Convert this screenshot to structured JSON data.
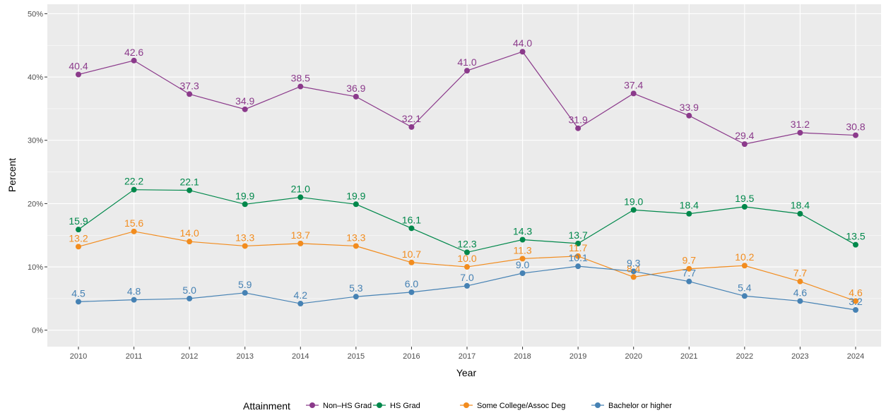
{
  "chart_data": {
    "type": "line",
    "title": "",
    "xlabel": "Year",
    "ylabel": "Percent",
    "x": [
      2010,
      2011,
      2012,
      2013,
      2014,
      2015,
      2016,
      2017,
      2018,
      2019,
      2020,
      2021,
      2022,
      2023,
      2024
    ],
    "ylim": [
      0,
      50
    ],
    "y_ticks": [
      "0%",
      "10%",
      "20%",
      "30%",
      "40%",
      "50%"
    ],
    "y_tick_values": [
      0,
      10,
      20,
      30,
      40,
      50
    ],
    "grid": true,
    "legend": {
      "title": "Attainment",
      "position": "bottom"
    },
    "series": [
      {
        "name": "Non–HS Grad",
        "color": "#8B3A8B",
        "values": [
          40.4,
          42.6,
          37.3,
          34.9,
          38.5,
          36.9,
          32.1,
          41.0,
          44.0,
          31.9,
          37.4,
          33.9,
          29.4,
          31.2,
          30.8
        ],
        "labels": [
          "40.4",
          "42.6",
          "37.3",
          "34.9",
          "38.5",
          "36.9",
          "32.1",
          "41.0",
          "44.0",
          "31.9",
          "37.4",
          "33.9",
          "29.4",
          "31.2",
          "30.8"
        ]
      },
      {
        "name": "HS Grad",
        "color": "#00884B",
        "values": [
          15.9,
          22.2,
          22.1,
          19.9,
          21.0,
          19.9,
          16.1,
          12.3,
          14.3,
          13.7,
          19.0,
          18.4,
          19.5,
          18.4,
          13.5
        ],
        "labels": [
          "15.9",
          "22.2",
          "22.1",
          "19.9",
          "21.0",
          "19.9",
          "16.1",
          "12.3",
          "14.3",
          "13.7",
          "19.0",
          "18.4",
          "19.5",
          "18.4",
          "13.5"
        ]
      },
      {
        "name": "Some College/Assoc Deg",
        "color": "#F28C1E",
        "values": [
          13.2,
          15.6,
          14.0,
          13.3,
          13.7,
          13.3,
          10.7,
          10.0,
          11.3,
          11.7,
          8.4,
          9.7,
          10.2,
          7.7,
          4.6
        ],
        "labels": [
          "13.2",
          "15.6",
          "14.0",
          "13.3",
          "13.7",
          "13.3",
          "10.7",
          "10.0",
          "11.3",
          "11.7",
          "8.4",
          "9.7",
          "10.2",
          "7.7",
          "4.6"
        ]
      },
      {
        "name": "Bachelor or higher",
        "color": "#4682B4",
        "values": [
          4.5,
          4.8,
          5.0,
          5.9,
          4.2,
          5.3,
          6.0,
          7.0,
          9.0,
          10.1,
          9.3,
          7.7,
          5.4,
          4.6,
          3.2
        ],
        "labels": [
          "4.5",
          "4.8",
          "5.0",
          "5.9",
          "4.2",
          "5.3",
          "6.0",
          "7.0",
          "9.0",
          "10.1",
          "9.3",
          "7.7",
          "5.4",
          "4.6",
          "3.2"
        ]
      }
    ]
  }
}
